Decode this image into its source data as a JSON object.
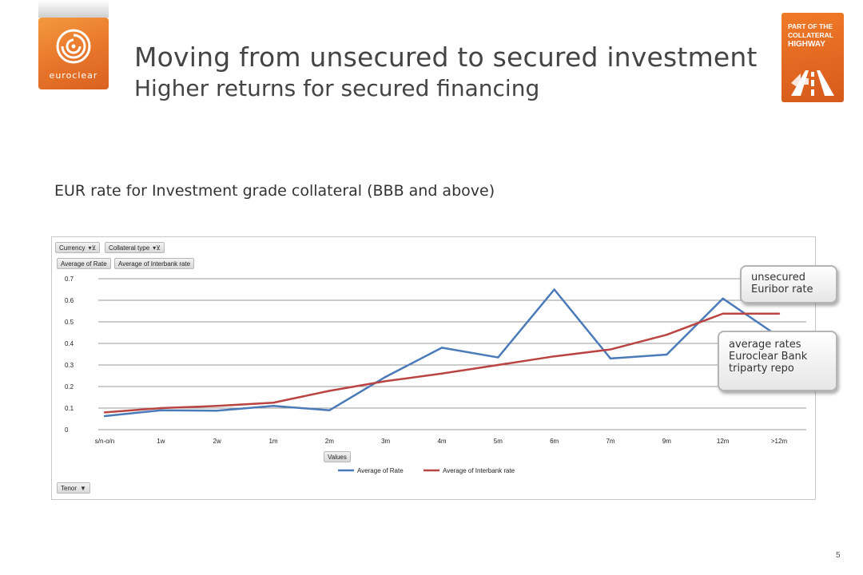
{
  "header": {
    "logo_text": "euroclear",
    "title_line1": "Moving from unsecured to secured investment",
    "title_line2": "Higher returns for secured financing",
    "badge_lines": [
      "PART OF THE",
      "COLLATERAL",
      "HIGHWAY"
    ]
  },
  "subtitle": "EUR rate for Investment grade collateral (BBB and above)",
  "pivot": {
    "filters": [
      "Currency",
      "Collateral type"
    ],
    "value_fields": [
      "Average of Rate",
      "Average of Interbank rate"
    ],
    "values_label": "Values",
    "axis_field": "Tenor"
  },
  "callouts": {
    "unsecured": [
      "unsecured",
      "Euribor rate"
    ],
    "secured": [
      "average rates",
      "Euroclear Bank",
      "triparty repo"
    ]
  },
  "chart_data": {
    "type": "line",
    "categories": [
      "s/n-o/n",
      "1w",
      "2w",
      "1m",
      "2m",
      "3m",
      "4m",
      "5m",
      "6m",
      "7m",
      "9m",
      "12m",
      ">12m"
    ],
    "series": [
      {
        "name": "Average of Rate",
        "color": "#4a7ab8",
        "values": [
          0.063,
          0.09,
          0.088,
          0.11,
          0.09,
          0.245,
          0.38,
          0.335,
          0.65,
          0.33,
          0.348,
          0.608,
          0.43
        ]
      },
      {
        "name": "Average of Interbank rate",
        "color": "#b94442",
        "values": [
          0.08,
          0.1,
          0.11,
          0.125,
          0.18,
          0.225,
          0.26,
          0.3,
          0.34,
          0.372,
          0.44,
          0.538,
          0.538
        ]
      }
    ],
    "yticks": [
      "0",
      "0.1",
      "0.2",
      "0.3",
      "0.4",
      "0.5",
      "0.6",
      "0.7"
    ],
    "ylim": [
      0,
      0.7
    ],
    "grid": true,
    "legend": "bottom"
  },
  "footer": {
    "page_number": "5"
  }
}
